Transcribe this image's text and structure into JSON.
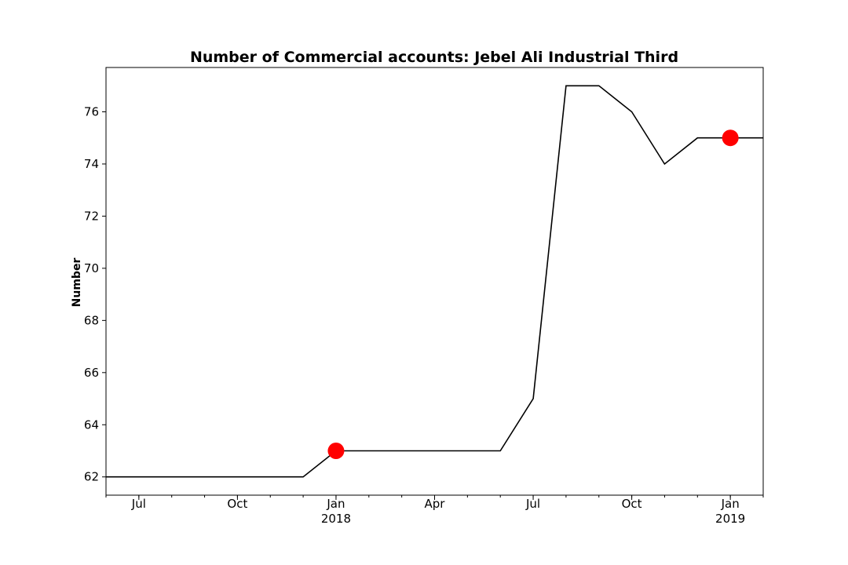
{
  "chart_data": {
    "type": "line",
    "title": "Number of Commercial accounts: Jebel Ali Industrial Third",
    "xlabel": "",
    "ylabel": "Number",
    "x": [
      "2017-06",
      "2017-07",
      "2017-08",
      "2017-09",
      "2017-10",
      "2017-11",
      "2017-12",
      "2018-01",
      "2018-02",
      "2018-03",
      "2018-04",
      "2018-05",
      "2018-06",
      "2018-07",
      "2018-08",
      "2018-09",
      "2018-10",
      "2018-11",
      "2018-12",
      "2019-01",
      "2019-02"
    ],
    "series": [
      {
        "values": [
          62,
          62,
          62,
          62,
          62,
          62,
          62,
          63,
          63,
          63,
          63,
          63,
          63,
          65,
          77,
          77,
          76,
          74,
          75,
          75,
          75
        ]
      }
    ],
    "highlighted_points": [
      {
        "x": "2018-01",
        "y": 63
      },
      {
        "x": "2019-01",
        "y": 75
      }
    ],
    "xlim": [
      "2017-06",
      "2019-02"
    ],
    "ylim": [
      61.3,
      77.7
    ],
    "yticks": [
      62,
      64,
      66,
      68,
      70,
      72,
      74,
      76
    ],
    "xticks": [
      {
        "x": "2017-07",
        "label": "Jul",
        "sublabel": ""
      },
      {
        "x": "2017-10",
        "label": "Oct",
        "sublabel": ""
      },
      {
        "x": "2018-01",
        "label": "Jan",
        "sublabel": "2018"
      },
      {
        "x": "2018-04",
        "label": "Apr",
        "sublabel": ""
      },
      {
        "x": "2018-07",
        "label": "Jul",
        "sublabel": ""
      },
      {
        "x": "2018-10",
        "label": "Oct",
        "sublabel": ""
      },
      {
        "x": "2019-01",
        "label": "Jan",
        "sublabel": "2019"
      }
    ],
    "grid": false,
    "line_color": "#000000",
    "marker_color": "#ff0000"
  }
}
